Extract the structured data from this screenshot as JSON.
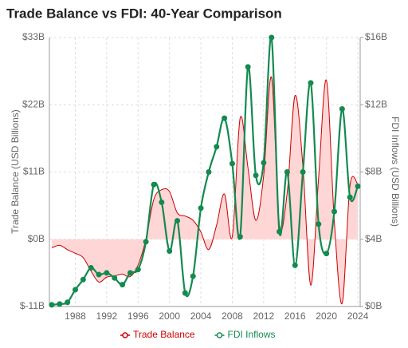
{
  "chart_data": {
    "type": "line",
    "title": "Trade Balance vs FDI: 40-Year Comparison",
    "y_label": "Trade Balance (USD Billions)",
    "y2_label": "FDI Inflows (USD Billions)",
    "x": [
      1985,
      1986,
      1987,
      1988,
      1989,
      1990,
      1991,
      1992,
      1993,
      1994,
      1995,
      1996,
      1997,
      1998,
      1999,
      2000,
      2001,
      2002,
      2003,
      2004,
      2005,
      2006,
      2007,
      2008,
      2009,
      2010,
      2011,
      2012,
      2013,
      2014,
      2015,
      2016,
      2017,
      2018,
      2019,
      2020,
      2021,
      2022,
      2023,
      2024
    ],
    "xlim": [
      1984.7,
      2024.3
    ],
    "xticks": [
      1988,
      1992,
      1996,
      2000,
      2004,
      2008,
      2012,
      2016,
      2020,
      2024
    ],
    "ylim": [
      -11,
      33
    ],
    "yticks": [
      {
        "value": -11,
        "label": "$-11B"
      },
      {
        "value": 0,
        "label": "$0B"
      },
      {
        "value": 11,
        "label": "$11B"
      },
      {
        "value": 22,
        "label": "$22B"
      },
      {
        "value": 33,
        "label": "$33B"
      }
    ],
    "y2lim": [
      0,
      16
    ],
    "y2ticks": [
      {
        "value": 0,
        "label": "$0B"
      },
      {
        "value": 4,
        "label": "$4B"
      },
      {
        "value": 8,
        "label": "$8B"
      },
      {
        "value": 12,
        "label": "$12B"
      },
      {
        "value": 16,
        "label": "$16B"
      }
    ],
    "grid": true,
    "legend": "bottom",
    "series": [
      {
        "name": "Trade Balance",
        "color": "#cc0000",
        "fill": "#ffd6d6",
        "area": true,
        "values": [
          -1.4,
          -1.0,
          -1.7,
          -2.3,
          -3.0,
          -5.2,
          -7.0,
          -6.2,
          -6.0,
          -5.7,
          -6.1,
          -4.2,
          0,
          6.5,
          8.1,
          7.8,
          4.3,
          3.8,
          3.1,
          1.2,
          -1.7,
          2.3,
          7.4,
          0.4,
          19.8,
          11.7,
          3.1,
          10.4,
          26.5,
          2.5,
          7.6,
          23.5,
          12,
          -7.5,
          10,
          26,
          3,
          -10.5,
          8.8,
          9.0
        ]
      },
      {
        "name": "FDI Inflows",
        "color": "#138a4f",
        "axis": "y2",
        "markers": true,
        "values": [
          0.1,
          0.15,
          0.25,
          1.0,
          1.6,
          2.3,
          1.9,
          2.0,
          1.7,
          1.3,
          2.0,
          2.2,
          3.85,
          7.25,
          6.2,
          3.3,
          5.1,
          0.8,
          1.8,
          5.85,
          8.0,
          9.5,
          11.2,
          8.5,
          4.15,
          14.25,
          7.8,
          8.55,
          16,
          4.45,
          8.0,
          2.45,
          8.0,
          13.3,
          4.9,
          3.15,
          5.65,
          11.75,
          6.5,
          7.15
        ]
      }
    ]
  }
}
